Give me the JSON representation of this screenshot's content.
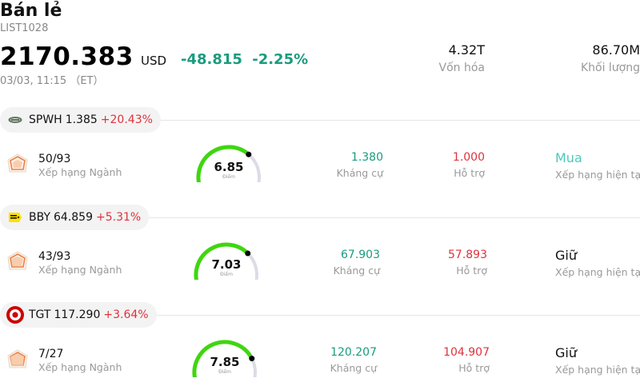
{
  "header": {
    "title": "Bán lẻ",
    "code": "LIST1028",
    "price": "2170.383",
    "currency": "USD",
    "change": "-48.815",
    "change_pct": "-2.25%",
    "time": "03/03, 11:15 （ET）"
  },
  "stats": [
    {
      "value": "4.32T",
      "label": "Vốn hóa"
    },
    {
      "value": "86.70M",
      "label": "Khối lượng"
    }
  ],
  "stocks": [
    {
      "symbol": "SPWH",
      "price": "1.385",
      "change_pct": "+20.43%",
      "rank": "50/93",
      "rank_label": "Xếp hạng Ngành",
      "score": "6.85",
      "score_value": 6.85,
      "score_unit": "Điểm",
      "resistance": "1.380",
      "resistance_label": "Kháng cự",
      "support": "1.000",
      "support_label": "Hỗ trợ",
      "rating": "Mua",
      "rating_label": "Xếp hạng hiện tại",
      "logo": "spwh-logo"
    },
    {
      "symbol": "BBY",
      "price": "64.859",
      "change_pct": "+5.31%",
      "rank": "43/93",
      "rank_label": "Xếp hạng Ngành",
      "score": "7.03",
      "score_value": 7.03,
      "score_unit": "Điểm",
      "resistance": "67.903",
      "resistance_label": "Kháng cự",
      "support": "57.893",
      "support_label": "Hỗ trợ",
      "rating": "Giữ",
      "rating_label": "Xếp hạng hiện tại",
      "logo": "bby-logo"
    },
    {
      "symbol": "TGT",
      "price": "117.290",
      "change_pct": "+3.64%",
      "rank": "7/27",
      "rank_label": "Xếp hạng Ngành",
      "score": "7.85",
      "score_value": 7.85,
      "score_unit": "Điểm",
      "resistance": "120.207",
      "resistance_label": "Kháng cự",
      "support": "104.907",
      "support_label": "Hỗ trợ",
      "rating": "Giữ",
      "rating_label": "Xếp hạng hiện tại",
      "logo": "target-logo"
    }
  ],
  "colors": {
    "up": "#1a9c7e",
    "down": "#e0323d",
    "buy": "#4cc9b9",
    "gauge_fill": "#3fd60f",
    "gauge_track": "#dcdce6"
  }
}
